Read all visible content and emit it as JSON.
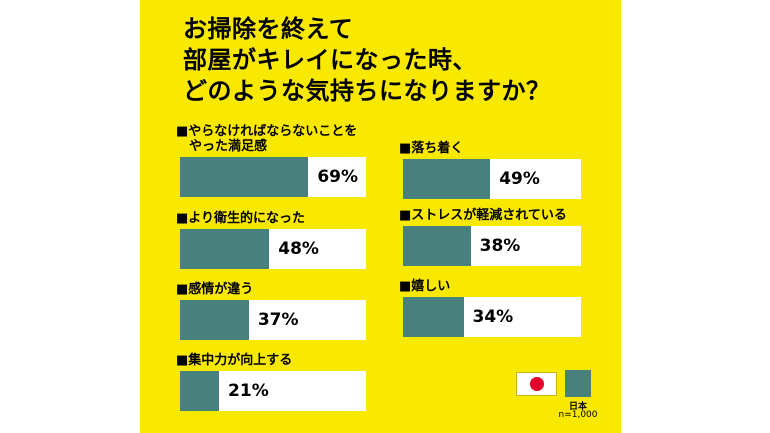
{
  "colors": {
    "background": "#F9E800",
    "bar_fill": "#48807E",
    "bar_track": "#FFFFFF",
    "text": "#000000",
    "flag_red": "#E0002B"
  },
  "title": "お掃除を終えて\n部屋がキレイになった時、\nどのような気持ちになりますか？",
  "legend": {
    "flag_icon": "japan-flag",
    "country": "日本",
    "sample": "n=1,000"
  },
  "chart_data": {
    "type": "bar",
    "orientation": "horizontal",
    "title": "お掃除を終えて部屋がキレイになった時、どのような気持ちになりますか？",
    "unit": "%",
    "xlim": [
      0,
      100
    ],
    "legend": {
      "label": "日本",
      "n": "n=1,000"
    },
    "columns": [
      {
        "items": [
          {
            "label": "■やらなければならないことを\nやった満足感",
            "value": 69,
            "value_label": "69%"
          },
          {
            "label": "■より衛生的になった",
            "value": 48,
            "value_label": "48%"
          },
          {
            "label": "■感情が違う",
            "value": 37,
            "value_label": "37%"
          },
          {
            "label": "■集中力が向上する",
            "value": 21,
            "value_label": "21%"
          }
        ]
      },
      {
        "items": [
          {
            "label": "■落ち着く",
            "value": 49,
            "value_label": "49%"
          },
          {
            "label": "■ストレスが軽減されている",
            "value": 38,
            "value_label": "38%"
          },
          {
            "label": "■嬉しい",
            "value": 34,
            "value_label": "34%"
          }
        ]
      }
    ]
  }
}
